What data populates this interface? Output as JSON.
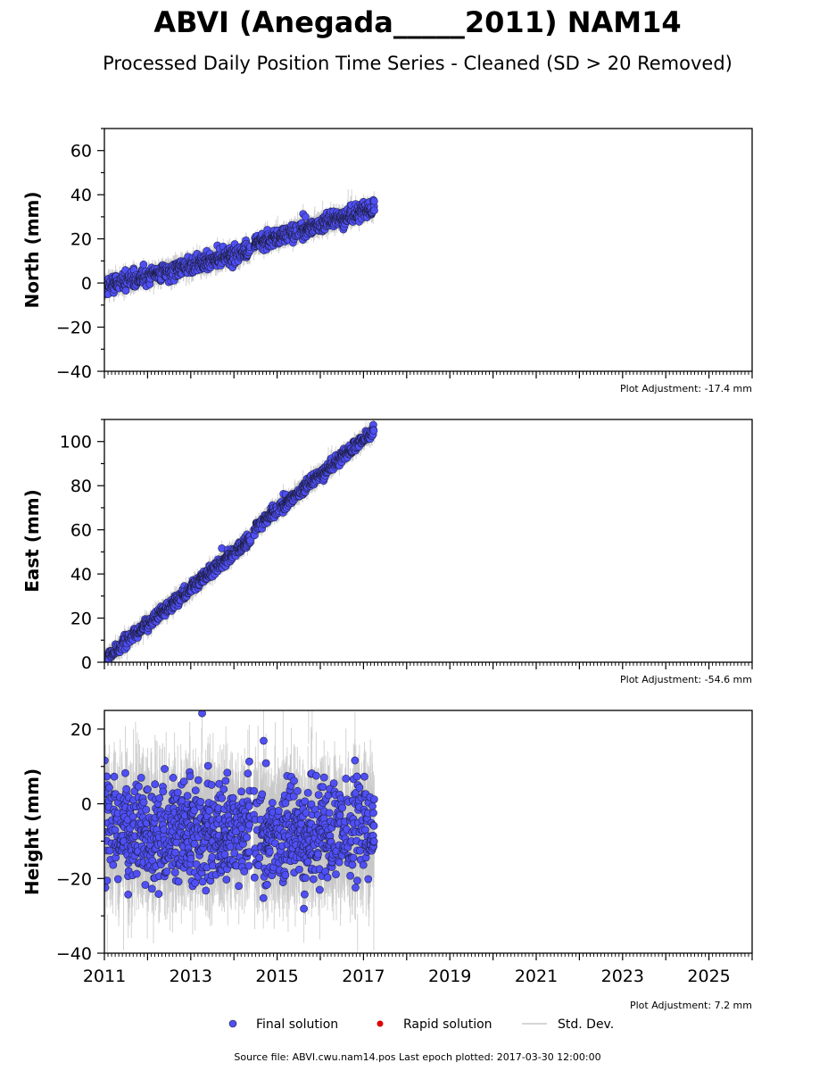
{
  "title": "ABVI (Anegada_____2011) NAM14",
  "subtitle": "Processed Daily Position Time Series - Cleaned (SD > 20 Removed)",
  "source": "Source file: ABVI.cwu.nam14.pos  Last epoch plotted: 2017-03-30 12:00:00",
  "legend": {
    "final": "Final solution",
    "rapid": "Rapid solution",
    "std": "Std. Dev."
  },
  "colors": {
    "final": "#4f4ff5",
    "rapid": "#dd0000",
    "std": "#c8c8c8"
  },
  "chart_data": [
    {
      "type": "scatter",
      "ylabel": "North (mm)",
      "xlim": [
        2011,
        2026
      ],
      "ylim": [
        -40,
        70
      ],
      "yticks": [
        -40,
        -20,
        0,
        20,
        40,
        60
      ],
      "adjustment": "Plot Adjustment: -17.4 mm",
      "series": [
        {
          "x_range": [
            2011.0,
            2017.25
          ],
          "trend": [
            [
              2011.0,
              -1.5
            ],
            [
              2014.45,
              15.0
            ],
            [
              2014.5,
              18.0
            ],
            [
              2017.25,
              34.0
            ]
          ],
          "scatter_mm": 1.8,
          "std_mm": 3.0
        }
      ]
    },
    {
      "type": "scatter",
      "ylabel": "East (mm)",
      "xlim": [
        2011,
        2026
      ],
      "ylim": [
        0,
        110
      ],
      "yticks": [
        0,
        20,
        40,
        60,
        80,
        100
      ],
      "adjustment": "Plot Adjustment: -54.6 mm",
      "series": [
        {
          "x_range": [
            2011.0,
            2017.25
          ],
          "trend": [
            [
              2011.0,
              1.0
            ],
            [
              2014.45,
              57.0
            ],
            [
              2014.5,
              61.0
            ],
            [
              2017.25,
              105.0
            ]
          ],
          "scatter_mm": 1.3,
          "std_mm": 3.0
        }
      ]
    },
    {
      "type": "scatter",
      "ylabel": "Height (mm)",
      "xlim": [
        2011,
        2026
      ],
      "ylim": [
        -40,
        25
      ],
      "yticks": [
        -40,
        -20,
        0,
        20
      ],
      "xticks": [
        2011,
        2013,
        2015,
        2017,
        2019,
        2021,
        2023,
        2025
      ],
      "adjustment": "Plot Adjustment: 7.2 mm",
      "series": [
        {
          "x_range": [
            2011.0,
            2017.25
          ],
          "trend": [
            [
              2011.0,
              -8.0
            ],
            [
              2017.25,
              -8.0
            ]
          ],
          "scatter_mm": 6.5,
          "std_mm": 9.0
        }
      ]
    }
  ]
}
